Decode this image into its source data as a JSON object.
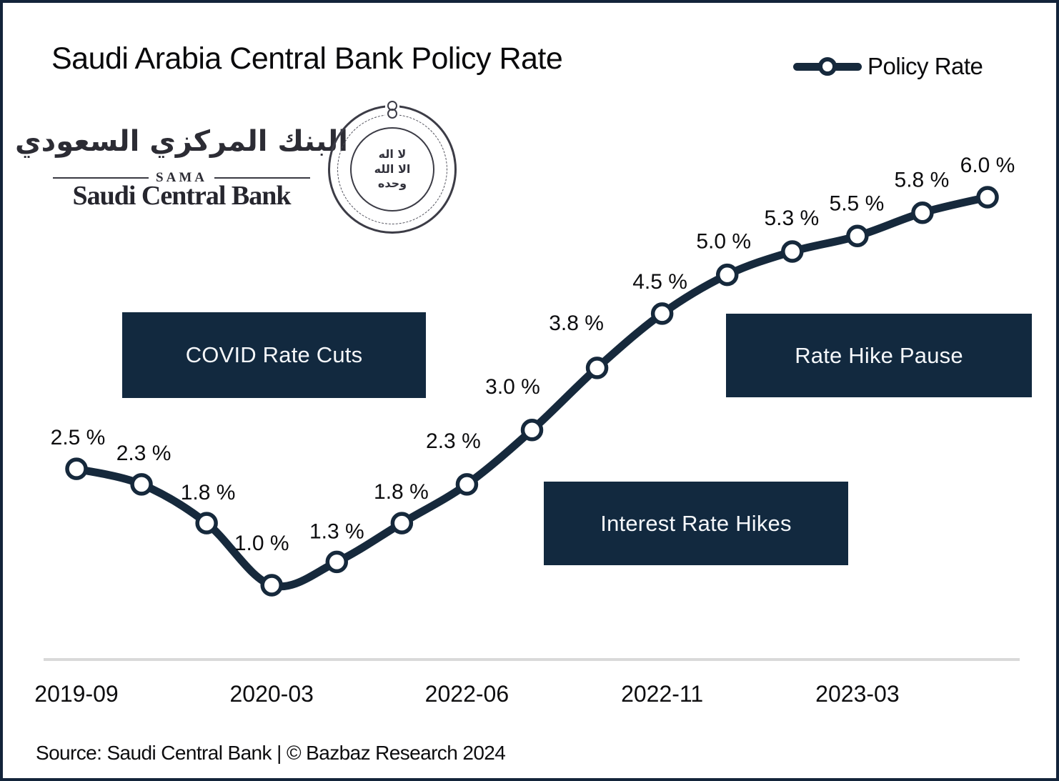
{
  "title": "Saudi Arabia Central Bank Policy Rate",
  "legend": {
    "label": "Policy Rate"
  },
  "logo": {
    "arabic_name": "البنك المركزي السعودي",
    "sama": "SAMA",
    "english_name": "Saudi Central Bank",
    "seal_line1": "لا اله",
    "seal_line2": "الا الله",
    "seal_line3": "وحده"
  },
  "annotations": [
    {
      "label": "COVID Rate Cuts"
    },
    {
      "label": "Interest Rate Hikes"
    },
    {
      "label": "Rate Hike Pause"
    }
  ],
  "source": "Source: Saudi Central Bank | © Bazbaz Research 2024",
  "colors": {
    "navy": "#16293c",
    "annotation_box": "#12293f",
    "axis_gray": "#d9d9d9",
    "text_dark": "#0d0d0f",
    "marker_fill": "#ffffff"
  },
  "chart_data": {
    "type": "line",
    "title": "Saudi Arabia Central Bank Policy Rate",
    "series": [
      {
        "name": "Policy Rate",
        "values": [
          2.5,
          2.3,
          1.8,
          1.0,
          1.3,
          1.8,
          2.3,
          3.0,
          3.8,
          4.5,
          5.0,
          5.3,
          5.5,
          5.8,
          6.0
        ],
        "point_labels": [
          "2.5 %",
          "2.3 %",
          "1.8 %",
          "1.0 %",
          "1.3 %",
          "1.8 %",
          "2.3 %",
          "3.0 %",
          "3.8 %",
          "4.5 %",
          "5.0 %",
          "5.3 %",
          "5.5 %",
          "5.8 %",
          "6.0 %"
        ]
      }
    ],
    "x_tick_labels": [
      "2019-09",
      "2020-03",
      "2022-06",
      "2022-11",
      "2023-03"
    ],
    "x_tick_point_indices": [
      0,
      3,
      6,
      9,
      12
    ],
    "ylim": [
      0.5,
      6.5
    ],
    "grid": false,
    "legend_position": "top-right",
    "marker": "open-circle",
    "annotations_text": [
      "COVID Rate Cuts",
      "Interest Rate Hikes",
      "Rate Hike Pause"
    ]
  }
}
